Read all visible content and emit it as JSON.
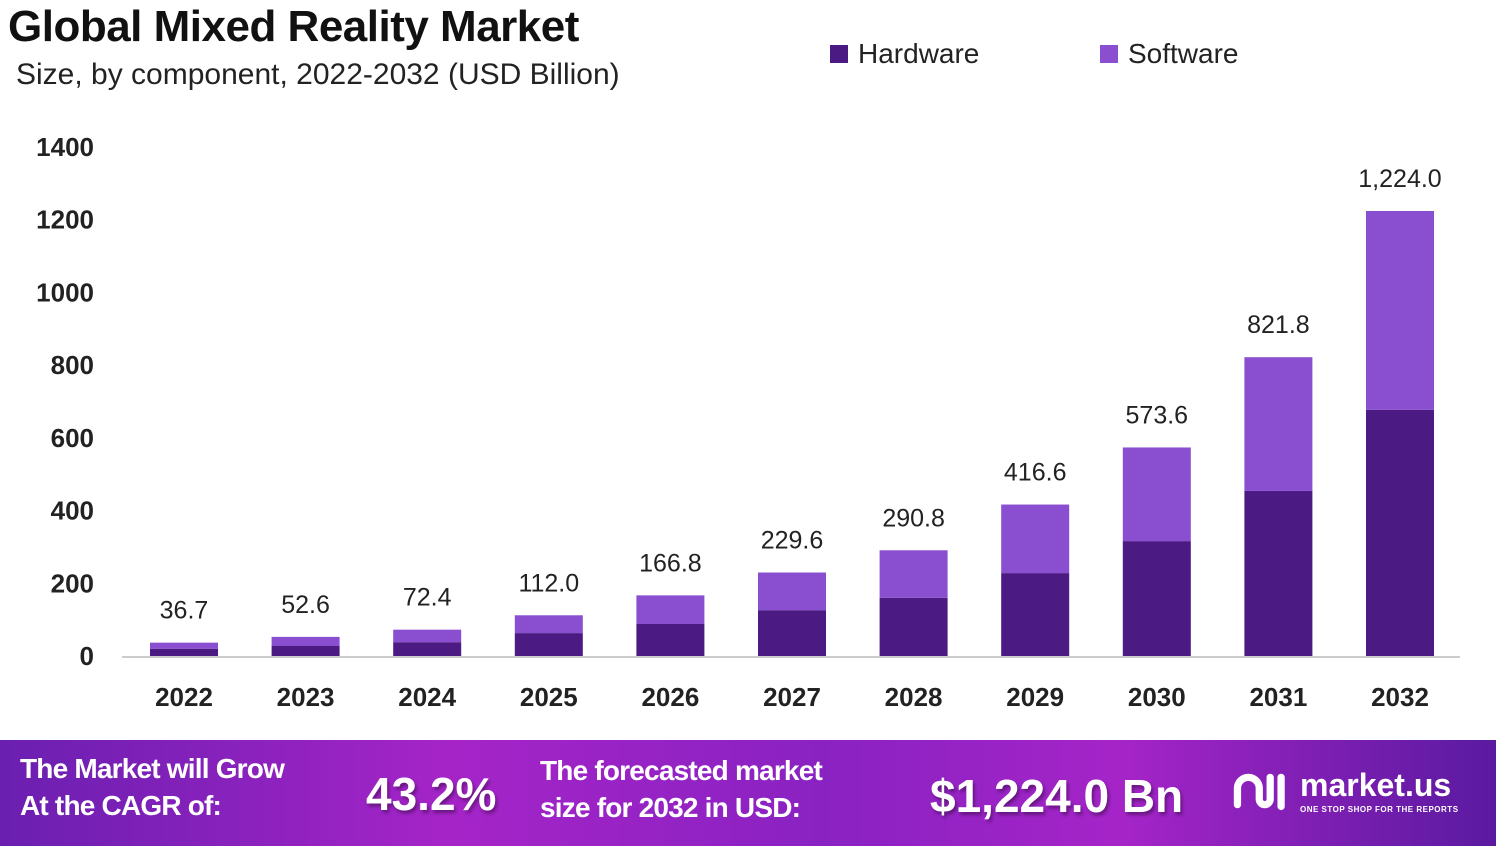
{
  "chart_data": {
    "type": "bar",
    "stacked": true,
    "title": "Global Mixed Reality Market",
    "subtitle": "Size, by component, 2022-2032 (USD Billion)",
    "categories": [
      "2022",
      "2023",
      "2024",
      "2025",
      "2026",
      "2027",
      "2028",
      "2029",
      "2030",
      "2031",
      "2032"
    ],
    "series": [
      {
        "name": "Hardware",
        "color": "#4b1a82",
        "values": [
          20,
          27.5,
          38,
          63,
          88,
          126,
          160,
          228,
          316,
          454,
          677
        ]
      },
      {
        "name": "Software",
        "color": "#8a4fd0",
        "values": [
          16.7,
          25.1,
          34.4,
          49,
          78.8,
          103.6,
          130.8,
          188.6,
          257.6,
          367.8,
          547
        ]
      }
    ],
    "totals": [
      36.7,
      52.6,
      72.4,
      112.0,
      166.8,
      229.6,
      290.8,
      416.6,
      573.6,
      821.8,
      1224.0
    ],
    "total_labels": [
      "36.7",
      "52.6",
      "72.4",
      "112.0",
      "166.8",
      "229.6",
      "290.8",
      "416.6",
      "573.6",
      "821.8",
      "1,224.0"
    ],
    "yticks": [
      0,
      200,
      400,
      600,
      800,
      1000,
      1200,
      1400
    ],
    "ylim": [
      0,
      1400
    ],
    "grid": false,
    "legend_position": "top-right"
  },
  "footer": {
    "cagr_text_1": "The Market will Grow",
    "cagr_text_2": "At the CAGR of:",
    "cagr_value": "43.2%",
    "forecast_text_1": "The forecasted market",
    "forecast_text_2": "size for 2032 in USD:",
    "forecast_value": "$1,224.0 Bn",
    "logo_name": "market.us",
    "logo_tagline": "ONE STOP SHOP FOR THE REPORTS"
  }
}
